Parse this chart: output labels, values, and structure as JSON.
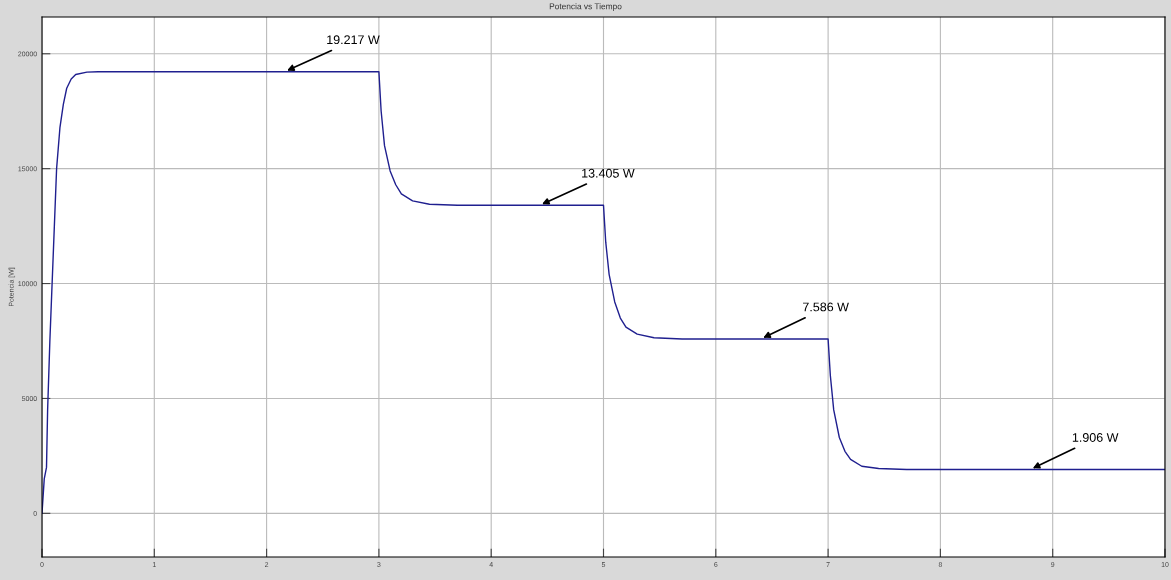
{
  "chart_data": {
    "type": "line",
    "title": "Potencia vs Tiempo",
    "ylabel": "Potencia [W]",
    "x": [
      0,
      0.02,
      0.04,
      0.05,
      0.07,
      0.09,
      0.11,
      0.13,
      0.16,
      0.19,
      0.22,
      0.26,
      0.3,
      0.4,
      0.5,
      3.0,
      3.02,
      3.05,
      3.1,
      3.15,
      3.2,
      3.3,
      3.45,
      3.7,
      5.0,
      5.02,
      5.05,
      5.1,
      5.15,
      5.2,
      5.3,
      5.45,
      5.7,
      7.0,
      7.02,
      7.05,
      7.1,
      7.15,
      7.2,
      7.3,
      7.45,
      7.7,
      10
    ],
    "series": [
      {
        "color": "#1f1f8f",
        "values": [
          0,
          1500,
          2000,
          4500,
          7500,
          10000,
          12500,
          15000,
          16800,
          17800,
          18500,
          18900,
          19100,
          19200,
          19217,
          19217,
          17500,
          16000,
          14900,
          14300,
          13900,
          13600,
          13450,
          13410,
          13405,
          11800,
          10400,
          9200,
          8500,
          8100,
          7800,
          7640,
          7590,
          7586,
          6000,
          4500,
          3300,
          2700,
          2350,
          2050,
          1950,
          1910,
          1906
        ]
      }
    ],
    "xlim": [
      0,
      10
    ],
    "xticks": [
      0,
      1,
      2,
      3,
      4,
      5,
      6,
      7,
      8,
      9,
      10
    ],
    "ylim": [
      -1900,
      21600
    ],
    "yticks": [
      0,
      5000,
      10000,
      15000,
      20000
    ],
    "grid": true,
    "marker": "none",
    "line_style": "solid",
    "annotations": [
      {
        "text": "19.217 W",
        "x": 2.16,
        "y": 19217
      },
      {
        "text": "13.405 W",
        "x": 4.43,
        "y": 13405
      },
      {
        "text": "7.586 W",
        "x": 6.4,
        "y": 7586
      },
      {
        "text": "1.906 W",
        "x": 8.8,
        "y": 1906
      }
    ]
  }
}
